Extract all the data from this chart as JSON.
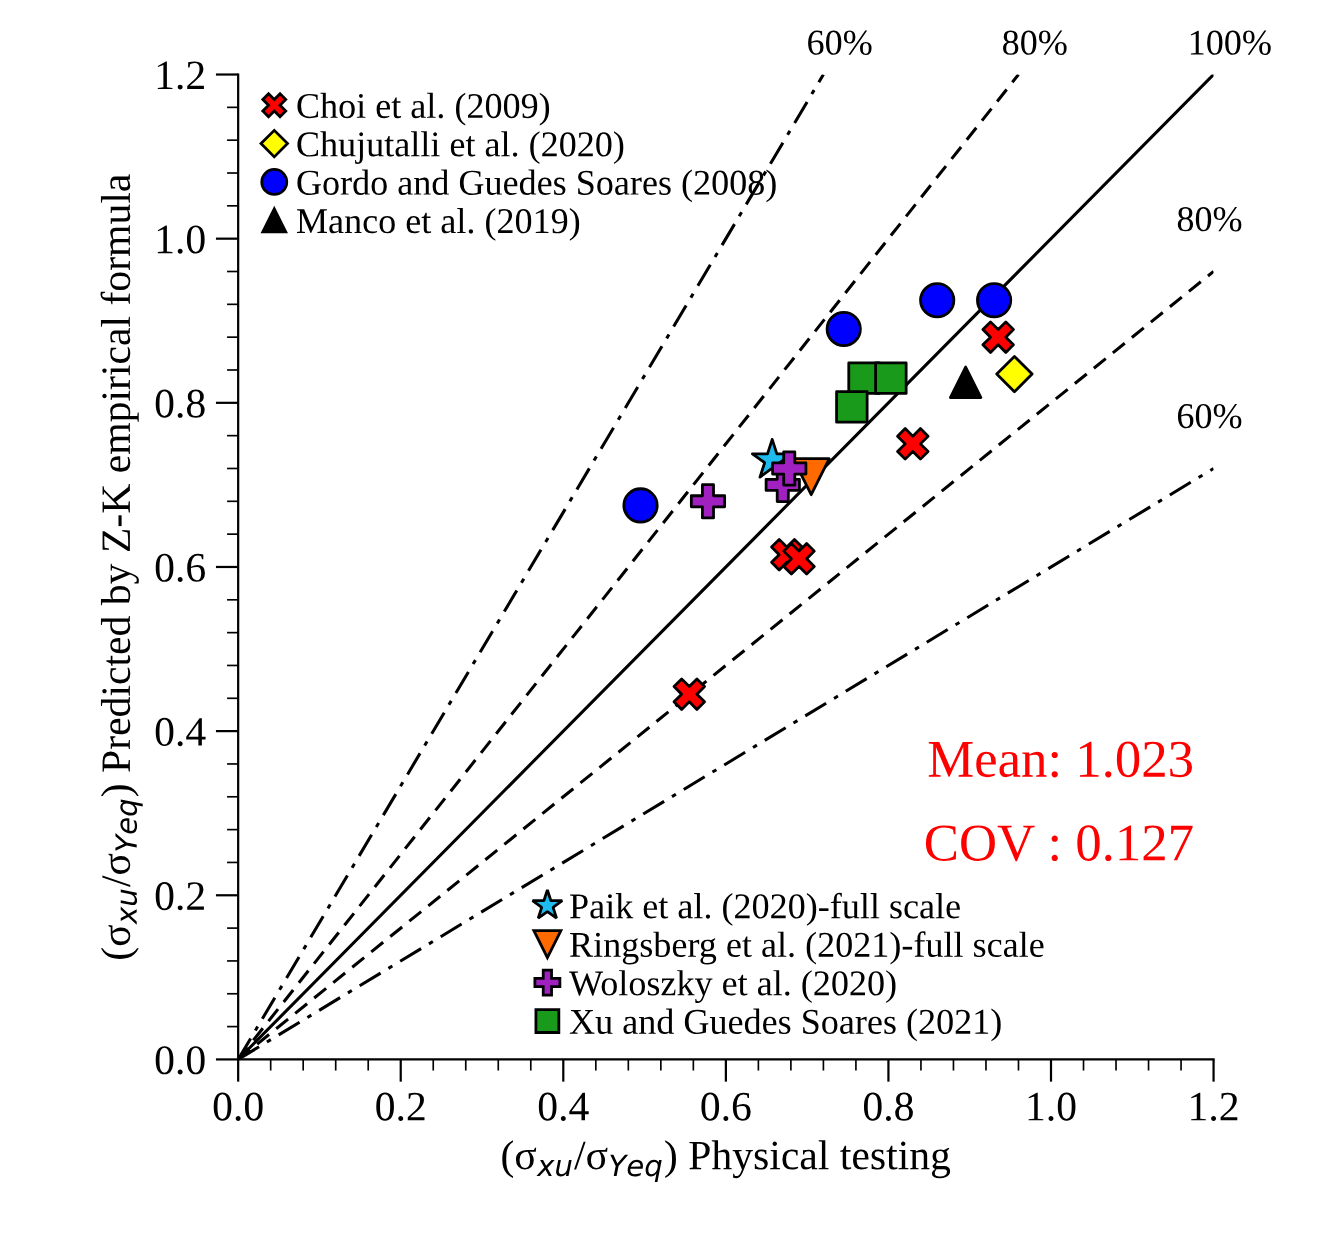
{
  "chart_data": {
    "type": "scatter",
    "xlabel": "(σ$_{xu}$/σ$_{Yeq}$) Physical testing",
    "ylabel": "(σ$_{xu}$/σ$_{Yeq}$) Predicted by Z-K empirical formula",
    "xlim": [
      0,
      1.2
    ],
    "ylim": [
      0,
      1.2
    ],
    "xticks": [
      {
        "value": 0,
        "label": "0.0"
      },
      {
        "value": 0.2,
        "label": "0.2"
      },
      {
        "value": 0.4,
        "label": "0.4"
      },
      {
        "value": 0.6,
        "label": "0.6"
      },
      {
        "value": 0.8,
        "label": "0.8"
      },
      {
        "value": 1.0,
        "label": "1.0"
      },
      {
        "value": 1.2,
        "label": "1.2"
      }
    ],
    "yticks": [
      {
        "value": 0,
        "label": "0.0"
      },
      {
        "value": 0.2,
        "label": "0.2"
      },
      {
        "value": 0.4,
        "label": "0.4"
      },
      {
        "value": 0.6,
        "label": "0.6"
      },
      {
        "value": 0.8,
        "label": "0.8"
      },
      {
        "value": 1.0,
        "label": "1.0"
      },
      {
        "value": 1.2,
        "label": "1.2"
      }
    ],
    "grid": false,
    "legend": "top left",
    "series": [
      {
        "type": "line",
        "name": "60%",
        "color": "#000000",
        "line_style": "dashdot",
        "x": [
          0,
          0.72
        ],
        "values": [
          0,
          1.2
        ]
      },
      {
        "type": "line",
        "name": "80%",
        "color": "#000000",
        "line_style": "dashed",
        "x": [
          0,
          0.96
        ],
        "values": [
          0,
          1.2
        ]
      },
      {
        "type": "line",
        "name": "100%",
        "color": "#000000",
        "line_style": "solid",
        "x": [
          0,
          1.2
        ],
        "values": [
          0,
          1.2
        ]
      },
      {
        "type": "line",
        "name": "80%",
        "color": "#000000",
        "line_style": "dashed",
        "x": [
          0,
          1.2
        ],
        "values": [
          0,
          0.96
        ]
      },
      {
        "type": "line",
        "name": "60%",
        "color": "#000000",
        "line_style": "dashdot",
        "x": [
          0,
          1.2
        ],
        "values": [
          0,
          0.72
        ]
      },
      {
        "name": "Choi et al. (2009)",
        "color": "#ff0000",
        "marker": "x",
        "x": [
          0.935,
          0.83,
          0.675,
          0.69,
          0.555
        ],
        "values": [
          0.88,
          0.75,
          0.615,
          0.61,
          0.445
        ]
      },
      {
        "name": "Chujutalli et al. (2020)",
        "color": "#ffff00",
        "marker": "diamond",
        "x": [
          0.955
        ],
        "values": [
          0.835
        ]
      },
      {
        "name": "Gordo and Guedes Soares (2008)",
        "color": "#0000ff",
        "marker": "circle",
        "x": [
          0.495,
          0.745,
          0.86,
          0.93
        ],
        "values": [
          0.675,
          0.89,
          0.925,
          0.925
        ]
      },
      {
        "name": "Manco et al. (2019)",
        "color": "#000000",
        "marker": "triangle",
        "x": [
          0.895
        ],
        "values": [
          0.825
        ]
      },
      {
        "name": "Paik et al. (2020)-full scale",
        "color": "#1ebbee",
        "marker": "star",
        "x": [
          0.657
        ],
        "values": [
          0.73
        ]
      },
      {
        "name": "Ringsberg et al. (2021)-full scale",
        "color": "#ff6a00",
        "marker": "triangle_down",
        "x": [
          0.705
        ],
        "values": [
          0.71
        ]
      },
      {
        "name": "Woloszky et al. (2020)",
        "color": "#a020c0",
        "marker": "plus",
        "x": [
          0.578,
          0.67,
          0.678
        ],
        "values": [
          0.68,
          0.7,
          0.72
        ]
      },
      {
        "name": "Xu and Guedes Soares (2021)",
        "color": "#1a9a1a",
        "marker": "square",
        "x": [
          0.77,
          0.803,
          0.755
        ],
        "values": [
          0.83,
          0.83,
          0.795
        ]
      }
    ],
    "annotations": [
      "Mean: 1.023",
      "COV : 0.127"
    ]
  }
}
